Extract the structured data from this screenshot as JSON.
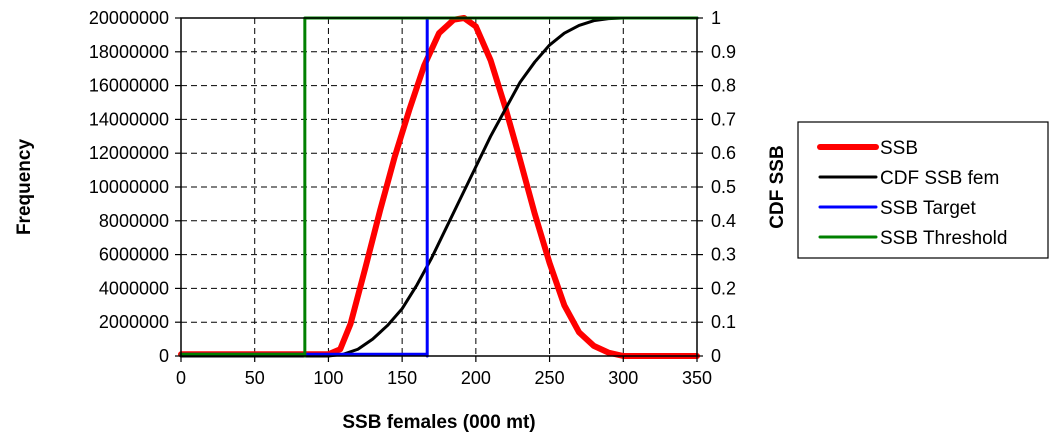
{
  "chart_data": {
    "type": "line",
    "xlabel": "SSB females (000 mt)",
    "ylabel": "Frequency",
    "y2label": "CDF SSB",
    "xlim": [
      0,
      350
    ],
    "ylim": [
      0,
      20000000
    ],
    "y2lim": [
      0,
      1
    ],
    "x_ticks": [
      0,
      50,
      100,
      150,
      200,
      250,
      300,
      350
    ],
    "y_ticks": [
      0,
      2000000,
      4000000,
      6000000,
      8000000,
      10000000,
      12000000,
      14000000,
      16000000,
      18000000,
      20000000
    ],
    "y2_ticks": [
      0,
      0.1,
      0.2,
      0.3,
      0.4,
      0.5,
      0.6,
      0.7,
      0.8,
      0.9,
      1
    ],
    "grid": true,
    "legend_position": "right",
    "series": [
      {
        "name": "SSB",
        "axis": "left",
        "color": "#ff0000",
        "x": [
          0,
          100,
          108,
          115,
          125,
          135,
          145,
          155,
          165,
          175,
          185,
          192,
          200,
          210,
          220,
          230,
          240,
          250,
          260,
          270,
          280,
          290,
          300,
          310,
          350
        ],
        "y": [
          100000,
          100000,
          400000,
          1900000,
          5200000,
          8600000,
          11800000,
          14600000,
          17200000,
          19100000,
          19900000,
          20000000,
          19500000,
          17500000,
          14700000,
          11600000,
          8400000,
          5500000,
          3000000,
          1400000,
          600000,
          200000,
          0,
          0,
          0
        ]
      },
      {
        "name": "CDF SSB fem",
        "axis": "right",
        "color": "#000000",
        "x": [
          0,
          100,
          110,
          120,
          130,
          140,
          150,
          160,
          170,
          180,
          190,
          200,
          210,
          220,
          230,
          240,
          250,
          260,
          270,
          280,
          290,
          300,
          350
        ],
        "y": [
          0,
          0,
          0.005,
          0.02,
          0.05,
          0.09,
          0.14,
          0.21,
          0.29,
          0.38,
          0.47,
          0.56,
          0.65,
          0.73,
          0.81,
          0.87,
          0.92,
          0.955,
          0.978,
          0.992,
          0.998,
          1,
          1
        ]
      },
      {
        "name": "SSB Target",
        "axis": "left",
        "color": "#0000ff",
        "x": [
          0,
          167,
          167,
          167,
          350
        ],
        "y": [
          100000,
          100000,
          0,
          20000000,
          20000000
        ]
      },
      {
        "name": "SSB Threshold",
        "axis": "left",
        "color": "#008000",
        "x": [
          0,
          84,
          84,
          84,
          350
        ],
        "y": [
          100000,
          100000,
          0,
          20000000,
          20000000
        ]
      }
    ]
  }
}
